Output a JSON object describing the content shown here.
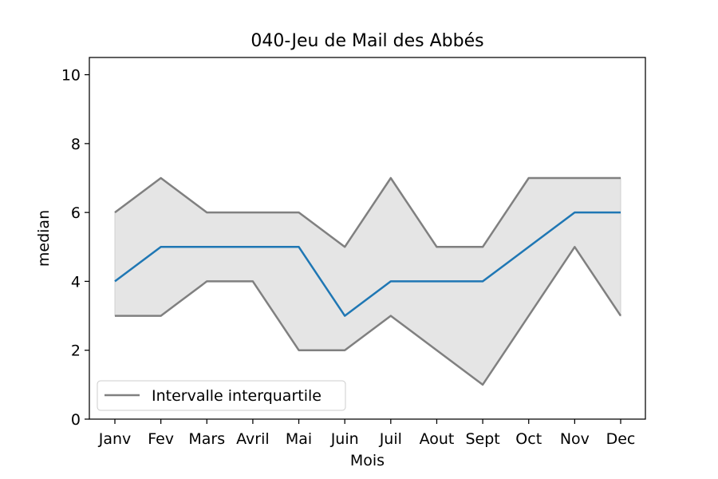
{
  "chart_data": {
    "type": "line",
    "title": "040-Jeu de Mail des Abbés",
    "xlabel": "Mois",
    "ylabel": "median",
    "categories": [
      "Janv",
      "Fev",
      "Mars",
      "Avril",
      "Mai",
      "Juin",
      "Juil",
      "Aout",
      "Sept",
      "Oct",
      "Nov",
      "Dec"
    ],
    "series": [
      {
        "values": [
          4,
          5,
          5,
          5,
          5,
          3,
          4,
          4,
          4,
          5,
          6,
          6
        ],
        "color": "#1f77b4"
      },
      {
        "values": [
          6,
          7,
          6,
          6,
          6,
          5,
          7,
          5,
          5,
          7,
          7,
          7
        ],
        "color": "#808080"
      },
      {
        "values": [
          3,
          3,
          4,
          4,
          2,
          2,
          3,
          2,
          1,
          3,
          5,
          3
        ],
        "color": "#808080"
      }
    ],
    "band_fill_color": "#e5e5e5",
    "ylim": [
      0,
      10.5
    ],
    "yticks": [
      0,
      2,
      4,
      6,
      8,
      10
    ],
    "grid": false,
    "legend": {
      "position": "lower-left",
      "entries": [
        "Intervalle interquartile"
      ],
      "entry_color": "#808080"
    }
  }
}
